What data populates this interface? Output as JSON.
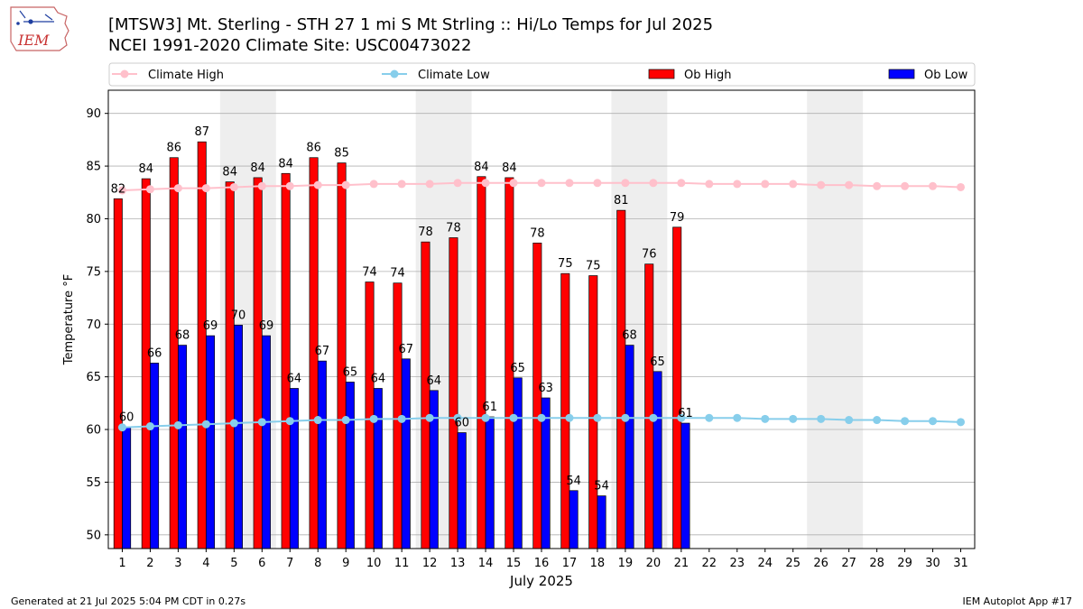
{
  "title_line1": "[MTSW3] Mt. Sterling - STH 27 1 mi S Mt Strling :: Hi/Lo Temps for Jul 2025",
  "title_line2": "NCEI 1991-2020 Climate Site: USC00473022",
  "logo_text": "IEM",
  "footer_left": "Generated at 21 Jul 2025 5:04 PM CDT in 0.27s",
  "footer_right": "IEM Autoplot App #17",
  "colors": {
    "ob_high": "#ff0000",
    "ob_low": "#0000ff",
    "climate_high": "#ffc0cb",
    "climate_low": "#87ceeb",
    "weekend_shade": "#eeeeee",
    "grid": "#b0b0b0"
  },
  "chart_data": {
    "type": "bar",
    "xlabel": "July 2025",
    "ylabel": "Temperature °F",
    "ylim": [
      48.7,
      92.2
    ],
    "yticks": [
      50,
      55,
      60,
      65,
      70,
      75,
      80,
      85,
      90
    ],
    "grid": "horizontal",
    "legend_placement": "top",
    "days": [
      1,
      2,
      3,
      4,
      5,
      6,
      7,
      8,
      9,
      10,
      11,
      12,
      13,
      14,
      15,
      16,
      17,
      18,
      19,
      20,
      21,
      22,
      23,
      24,
      25,
      26,
      27,
      28,
      29,
      30,
      31
    ],
    "shaded_days": [
      [
        5,
        6
      ],
      [
        12,
        13
      ],
      [
        19,
        20
      ],
      [
        26,
        27
      ]
    ],
    "series": [
      {
        "name": "Climate High",
        "kind": "line",
        "values": [
          82.7,
          82.8,
          82.9,
          82.9,
          83.0,
          83.1,
          83.1,
          83.2,
          83.2,
          83.3,
          83.3,
          83.3,
          83.4,
          83.4,
          83.4,
          83.4,
          83.4,
          83.4,
          83.4,
          83.4,
          83.4,
          83.3,
          83.3,
          83.3,
          83.3,
          83.2,
          83.2,
          83.1,
          83.1,
          83.1,
          83.0
        ]
      },
      {
        "name": "Climate Low",
        "kind": "line",
        "values": [
          60.2,
          60.3,
          60.4,
          60.5,
          60.6,
          60.7,
          60.8,
          60.9,
          60.9,
          61.0,
          61.0,
          61.1,
          61.1,
          61.1,
          61.1,
          61.1,
          61.1,
          61.1,
          61.1,
          61.1,
          61.1,
          61.1,
          61.1,
          61.0,
          61.0,
          61.0,
          60.9,
          60.9,
          60.8,
          60.8,
          60.7
        ]
      },
      {
        "name": "Ob High",
        "kind": "bar",
        "values": [
          82,
          84,
          86,
          87,
          84,
          84,
          84,
          86,
          85,
          74,
          74,
          78,
          78,
          84,
          84,
          78,
          75,
          75,
          81,
          76,
          79
        ],
        "bar_values": [
          81.9,
          83.8,
          85.8,
          87.3,
          83.5,
          83.9,
          84.3,
          85.8,
          85.3,
          74.0,
          73.9,
          77.8,
          78.2,
          84.0,
          83.9,
          77.7,
          74.8,
          74.6,
          80.8,
          75.7,
          79.2
        ]
      },
      {
        "name": "Ob Low",
        "kind": "bar",
        "values": [
          60,
          66,
          68,
          69,
          70,
          69,
          64,
          67,
          65,
          64,
          67,
          64,
          60,
          61,
          65,
          63,
          54,
          54,
          68,
          65,
          61
        ],
        "bar_values": [
          60.2,
          66.3,
          68.0,
          68.9,
          69.9,
          68.9,
          63.9,
          66.5,
          64.5,
          63.9,
          66.7,
          63.7,
          59.7,
          61.2,
          64.9,
          63.0,
          54.2,
          53.7,
          68.0,
          65.5,
          60.6
        ]
      }
    ]
  }
}
